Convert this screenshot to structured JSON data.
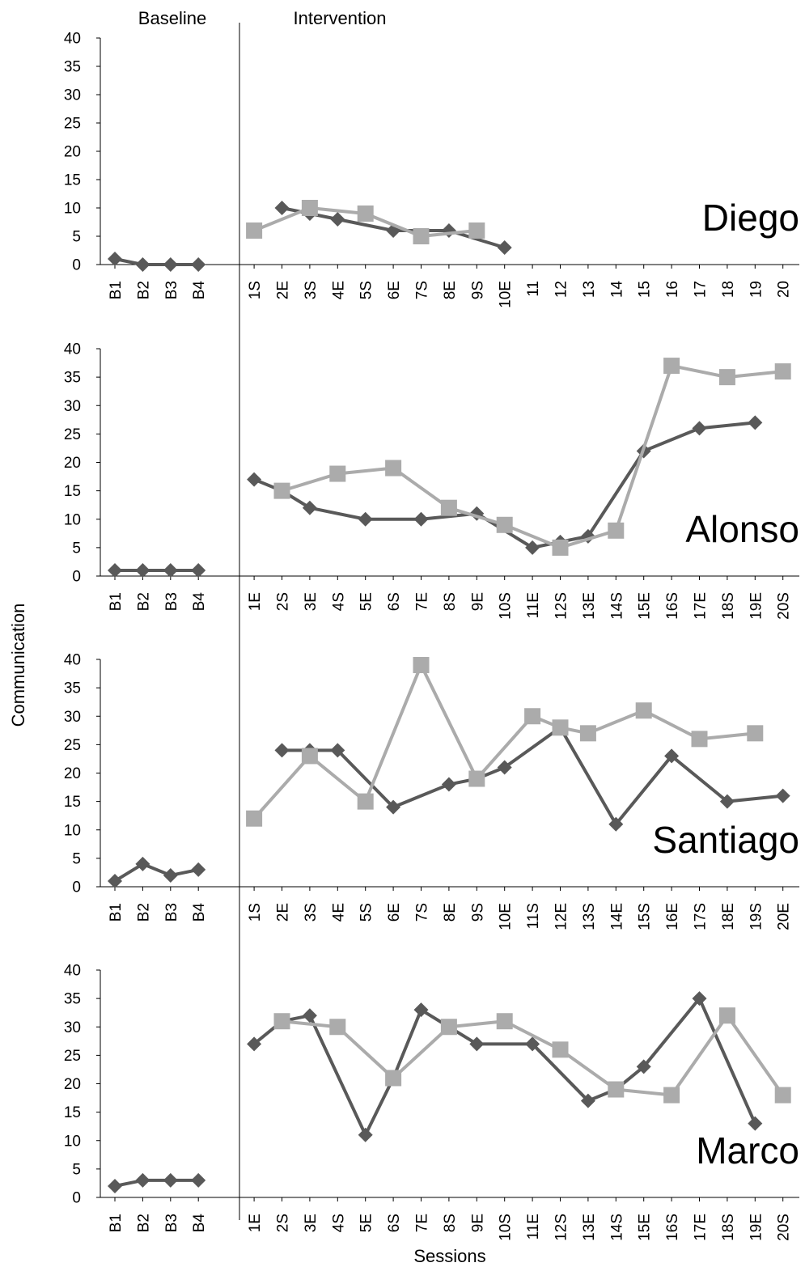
{
  "figure": {
    "phase_labels": [
      "Baseline",
      "Intervention"
    ],
    "ylabel": "Communication",
    "xlabel": "Sessions"
  },
  "colors": {
    "series_dark": "#595959",
    "series_light": "#ababab",
    "axis": "#000000"
  },
  "chart_data": [
    {
      "type": "line",
      "participant": "Diego",
      "ylim": [
        0,
        40
      ],
      "yticks": [
        0,
        5,
        10,
        15,
        20,
        25,
        30,
        35,
        40
      ],
      "categories": [
        "B1",
        "B2",
        "B3",
        "B4",
        "1S",
        "2E",
        "3S",
        "4E",
        "5S",
        "6E",
        "7S",
        "8E",
        "9S",
        "10E",
        "11",
        "12",
        "13",
        "14",
        "15",
        "16",
        "17",
        "18",
        "19",
        "20"
      ],
      "series": [
        {
          "marker": "diamond",
          "color": "#595959",
          "segments": [
            [
              [
                0,
                1
              ],
              [
                1,
                0
              ],
              [
                2,
                0
              ],
              [
                3,
                0
              ]
            ],
            [
              [
                5,
                10
              ],
              [
                6,
                9
              ],
              [
                7,
                8
              ],
              [
                9,
                6
              ],
              [
                11,
                6
              ],
              [
                13,
                3
              ]
            ]
          ]
        },
        {
          "marker": "square",
          "color": "#ababab",
          "segments": [
            [
              [
                4,
                6
              ],
              [
                6,
                10
              ],
              [
                8,
                9
              ],
              [
                10,
                5
              ],
              [
                12,
                6
              ]
            ]
          ]
        }
      ]
    },
    {
      "type": "line",
      "participant": "Alonso",
      "ylim": [
        0,
        40
      ],
      "yticks": [
        0,
        5,
        10,
        15,
        20,
        25,
        30,
        35,
        40
      ],
      "categories": [
        "B1",
        "B2",
        "B3",
        "B4",
        "1E",
        "2S",
        "3E",
        "4S",
        "5E",
        "6S",
        "7E",
        "8S",
        "9E",
        "10S",
        "11E",
        "12S",
        "13E",
        "14S",
        "15E",
        "16S",
        "17E",
        "18S",
        "19E",
        "20S"
      ],
      "series": [
        {
          "marker": "diamond",
          "color": "#595959",
          "segments": [
            [
              [
                0,
                1
              ],
              [
                1,
                1
              ],
              [
                2,
                1
              ],
              [
                3,
                1
              ]
            ],
            [
              [
                4,
                17
              ],
              [
                5,
                15
              ],
              [
                6,
                12
              ],
              [
                8,
                10
              ],
              [
                10,
                10
              ],
              [
                12,
                11
              ],
              [
                14,
                5
              ],
              [
                15,
                6
              ],
              [
                16,
                7
              ],
              [
                18,
                22
              ],
              [
                20,
                26
              ],
              [
                22,
                27
              ]
            ]
          ]
        },
        {
          "marker": "square",
          "color": "#ababab",
          "segments": [
            [
              [
                5,
                15
              ],
              [
                7,
                18
              ],
              [
                9,
                19
              ],
              [
                11,
                12
              ],
              [
                13,
                9
              ],
              [
                15,
                5
              ],
              [
                17,
                8
              ],
              [
                19,
                37
              ],
              [
                21,
                35
              ],
              [
                23,
                36
              ]
            ]
          ]
        }
      ]
    },
    {
      "type": "line",
      "participant": "Santiago",
      "ylim": [
        0,
        40
      ],
      "yticks": [
        0,
        5,
        10,
        15,
        20,
        25,
        30,
        35,
        40
      ],
      "categories": [
        "B1",
        "B2",
        "B3",
        "B4",
        "1S",
        "2E",
        "3S",
        "4E",
        "5S",
        "6E",
        "7S",
        "8E",
        "9S",
        "10E",
        "11S",
        "12E",
        "13S",
        "14E",
        "15S",
        "16E",
        "17S",
        "18E",
        "19S",
        "20E"
      ],
      "series": [
        {
          "marker": "diamond",
          "color": "#595959",
          "segments": [
            [
              [
                0,
                1
              ],
              [
                1,
                4
              ],
              [
                2,
                2
              ],
              [
                3,
                3
              ]
            ],
            [
              [
                5,
                24
              ],
              [
                6,
                24
              ],
              [
                7,
                24
              ],
              [
                9,
                14
              ],
              [
                11,
                18
              ],
              [
                12,
                19
              ],
              [
                13,
                21
              ],
              [
                15,
                28
              ],
              [
                17,
                11
              ],
              [
                19,
                23
              ],
              [
                21,
                15
              ],
              [
                23,
                16
              ]
            ]
          ]
        },
        {
          "marker": "square",
          "color": "#ababab",
          "segments": [
            [
              [
                4,
                12
              ],
              [
                6,
                23
              ],
              [
                8,
                15
              ],
              [
                10,
                39
              ],
              [
                12,
                19
              ],
              [
                14,
                30
              ],
              [
                15,
                28
              ],
              [
                16,
                27
              ],
              [
                18,
                31
              ],
              [
                20,
                26
              ],
              [
                22,
                27
              ]
            ]
          ]
        }
      ]
    },
    {
      "type": "line",
      "participant": "Marco",
      "ylim": [
        0,
        40
      ],
      "yticks": [
        0,
        5,
        10,
        15,
        20,
        25,
        30,
        35,
        40
      ],
      "categories": [
        "B1",
        "B2",
        "B3",
        "B4",
        "1E",
        "2S",
        "3E",
        "4S",
        "5E",
        "6S",
        "7E",
        "8S",
        "9E",
        "10S",
        "11E",
        "12S",
        "13E",
        "14S",
        "15E",
        "16S",
        "17E",
        "18S",
        "19E",
        "20S"
      ],
      "series": [
        {
          "marker": "diamond",
          "color": "#595959",
          "segments": [
            [
              [
                0,
                2
              ],
              [
                1,
                3
              ],
              [
                2,
                3
              ],
              [
                3,
                3
              ]
            ],
            [
              [
                4,
                27
              ],
              [
                5,
                31
              ],
              [
                6,
                32
              ],
              [
                8,
                11
              ],
              [
                9,
                21
              ],
              [
                10,
                33
              ],
              [
                11,
                30
              ],
              [
                12,
                27
              ],
              [
                14,
                27
              ],
              [
                16,
                17
              ],
              [
                17,
                19
              ],
              [
                18,
                23
              ],
              [
                20,
                35
              ],
              [
                22,
                13
              ]
            ]
          ]
        },
        {
          "marker": "square",
          "color": "#ababab",
          "segments": [
            [
              [
                5,
                31
              ],
              [
                7,
                30
              ],
              [
                9,
                21
              ],
              [
                11,
                30
              ],
              [
                13,
                31
              ],
              [
                15,
                26
              ],
              [
                17,
                19
              ],
              [
                19,
                18
              ],
              [
                21,
                32
              ],
              [
                23,
                18
              ]
            ]
          ]
        }
      ]
    }
  ]
}
